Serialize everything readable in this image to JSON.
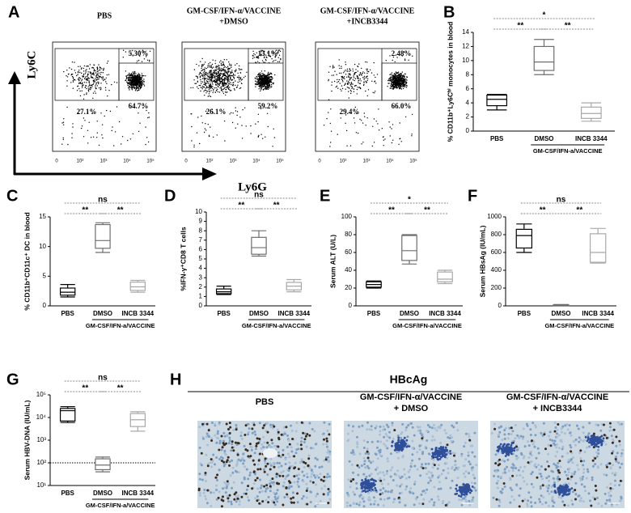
{
  "flow": {
    "panel": "A",
    "y_label": "Ly6C",
    "x_label": "Ly6G",
    "x_ticks": [
      "0",
      "10²",
      "10³",
      "10⁴",
      "10⁵"
    ],
    "plots": [
      {
        "title": [
          "PBS"
        ],
        "top_right": "5.30%",
        "right": "64.7%",
        "left": "27.1%"
      },
      {
        "title": [
          "GM-CSF/IFN-α/VACCINE",
          "+DMSO"
        ],
        "top_right": "13.1%",
        "right": "59.2%",
        "left": "26.1%"
      },
      {
        "title": [
          "GM-CSF/IFN-α/VACCINE",
          "+INCB3344"
        ],
        "top_right": "2.48%",
        "right": "66.0%",
        "left": "29.4%"
      }
    ]
  },
  "chart_data": [
    {
      "panel": "B",
      "type": "box",
      "y_label": "% CD11b⁺Ly6Cʰⁱ monocytes in blood",
      "categories": [
        "PBS",
        "DMSO",
        "INCB 3344"
      ],
      "group_label": "GM-CSF/IFN-a/VACCINE",
      "colors": [
        "#000000",
        "#6e6e6e",
        "#a8a8a8"
      ],
      "ylim": [
        0,
        14
      ],
      "yticks": [
        0,
        2,
        4,
        6,
        8,
        10,
        12,
        14
      ],
      "significance": [
        "**",
        "**",
        "*"
      ],
      "boxes": [
        {
          "min": 3,
          "q1": 3.6,
          "median": 4.5,
          "q3": 5.1,
          "max": 5.2
        },
        {
          "min": 8,
          "q1": 8.6,
          "median": 9.8,
          "q3": 12,
          "max": 13
        },
        {
          "min": 1.4,
          "q1": 1.8,
          "median": 2.5,
          "q3": 3.4,
          "max": 4
        }
      ]
    },
    {
      "panel": "C",
      "type": "box",
      "y_label": "% CD11b⁺CD11c⁺ DC in blood",
      "categories": [
        "PBS",
        "DMSO",
        "INCB 3344"
      ],
      "group_label": "GM-CSF/IFN-a/VACCINE",
      "colors": [
        "#000000",
        "#6e6e6e",
        "#a8a8a8"
      ],
      "ylim": [
        0,
        15
      ],
      "yticks": [
        0,
        5,
        10,
        15
      ],
      "significance": [
        "**",
        "**",
        "ns"
      ],
      "boxes": [
        {
          "min": 1.5,
          "q1": 1.8,
          "median": 2.3,
          "q3": 3,
          "max": 3.6
        },
        {
          "min": 9,
          "q1": 9.7,
          "median": 11,
          "q3": 13.7,
          "max": 14
        },
        {
          "min": 2.3,
          "q1": 2.6,
          "median": 3.2,
          "q3": 4,
          "max": 4.3
        }
      ]
    },
    {
      "panel": "D",
      "type": "box",
      "y_label": "%IFN-γ⁺CD8 T cells",
      "categories": [
        "PBS",
        "DMSO",
        "INCB 3344"
      ],
      "group_label": "GM-CSF/IFN-a/VACCINE",
      "colors": [
        "#000000",
        "#6e6e6e",
        "#a8a8a8"
      ],
      "ylim": [
        0,
        10
      ],
      "yticks": [
        0,
        1,
        2,
        3,
        4,
        5,
        6,
        7,
        8,
        9,
        10
      ],
      "significance": [
        "**",
        "**",
        "ns"
      ],
      "boxes": [
        {
          "min": 1.2,
          "q1": 1.3,
          "median": 1.5,
          "q3": 1.8,
          "max": 2.1
        },
        {
          "min": 5.3,
          "q1": 5.5,
          "median": 6.2,
          "q3": 7.3,
          "max": 8
        },
        {
          "min": 1.5,
          "q1": 1.7,
          "median": 2.1,
          "q3": 2.5,
          "max": 2.8
        }
      ]
    },
    {
      "panel": "E",
      "type": "box",
      "y_label": "Serum ALT (U/L)",
      "categories": [
        "PBS",
        "DMSO",
        "INCB 3344"
      ],
      "group_label": "GM-CSF/IFN-a/VACCINE",
      "colors": [
        "#000000",
        "#6e6e6e",
        "#a8a8a8"
      ],
      "ylim": [
        0,
        100
      ],
      "yticks": [
        0,
        20,
        40,
        60,
        80,
        100
      ],
      "significance": [
        "**",
        "**",
        "*"
      ],
      "boxes": [
        {
          "min": 20,
          "q1": 21,
          "median": 24,
          "q3": 27,
          "max": 28
        },
        {
          "min": 47,
          "q1": 51,
          "median": 62,
          "q3": 79,
          "max": 80
        },
        {
          "min": 25,
          "q1": 27,
          "median": 30,
          "q3": 38,
          "max": 40
        }
      ]
    },
    {
      "panel": "F",
      "type": "box",
      "y_label": "Serum HBsAg (IU/mL)",
      "categories": [
        "PBS",
        "DMSO",
        "INCB 3344"
      ],
      "group_label": "GM-CSF/IFN-a/VACCINE",
      "colors": [
        "#000000",
        "#6e6e6e",
        "#a8a8a8"
      ],
      "ylim": [
        0,
        1000
      ],
      "yticks": [
        0,
        200,
        400,
        600,
        800,
        1000
      ],
      "significance": [
        "**",
        "**",
        "ns"
      ],
      "boxes": [
        {
          "min": 600,
          "q1": 650,
          "median": 790,
          "q3": 860,
          "max": 920
        },
        {
          "min": 0,
          "q1": 0,
          "median": 2,
          "q3": 10,
          "max": 15
        },
        {
          "min": 480,
          "q1": 490,
          "median": 600,
          "q3": 810,
          "max": 870
        }
      ]
    },
    {
      "panel": "G",
      "type": "box",
      "y_label": "Serum HBV-DNA (IU/mL)",
      "categories": [
        "PBS",
        "DMSO",
        "INCB 3344"
      ],
      "group_label": "GM-CSF/IFN-a/VACCINE",
      "colors": [
        "#000000",
        "#6e6e6e",
        "#a8a8a8"
      ],
      "log_scale": true,
      "ylim": [
        10,
        100000
      ],
      "yticks": [
        {
          "value": 10,
          "label": "10¹"
        },
        {
          "value": 100,
          "label": "10²"
        },
        {
          "value": 1000,
          "label": "10³"
        },
        {
          "value": 10000,
          "label": "10⁴"
        },
        {
          "value": 100000,
          "label": "10⁵"
        }
      ],
      "reference_line": 100,
      "significance": [
        "**",
        "**",
        "ns"
      ],
      "boxes": [
        {
          "min": 6000,
          "q1": 7000,
          "median": 20000,
          "q3": 25000,
          "max": 30000
        },
        {
          "min": 40,
          "q1": 50,
          "median": 80,
          "q3": 150,
          "max": 180
        },
        {
          "min": 2500,
          "q1": 4000,
          "median": 8000,
          "q3": 15000,
          "max": 18000
        }
      ]
    }
  ],
  "histology": {
    "panel": "H",
    "title": "HBcAg",
    "images": [
      {
        "title": [
          "PBS"
        ]
      },
      {
        "title": [
          "GM-CSF/IFN-α/VACCINE",
          "+ DMSO"
        ]
      },
      {
        "title": [
          "GM-CSF/IFN-α/VACCINE",
          "+ INCB3344"
        ]
      }
    ]
  }
}
